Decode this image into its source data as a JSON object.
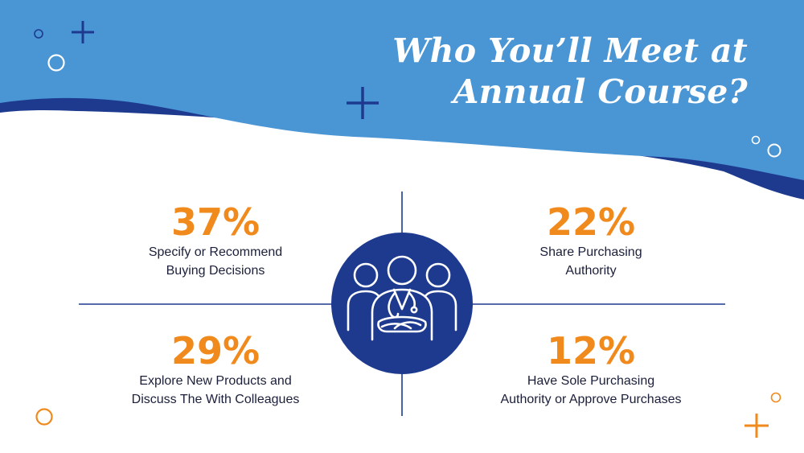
{
  "title": {
    "line1": "Who You’ll Meet at",
    "line2": "Annual Course?"
  },
  "stats": [
    {
      "percent": "37%",
      "line1": "Specify or Recommend",
      "line2": "Buying Decisions"
    },
    {
      "percent": "22%",
      "line1": "Share Purchasing",
      "line2": "Authority"
    },
    {
      "percent": "29%",
      "line1": "Explore New Products and",
      "line2": "Discuss The With Colleagues"
    },
    {
      "percent": "12%",
      "line1": "Have Sole Purchasing",
      "line2": "Authority or Approve Purchases"
    }
  ],
  "center_icon": "medical-team-icon",
  "colors": {
    "sky_blue": "#4a95d4",
    "navy": "#1d3a8f",
    "orange": "#f08a1c",
    "text": "#1b1f3a"
  }
}
